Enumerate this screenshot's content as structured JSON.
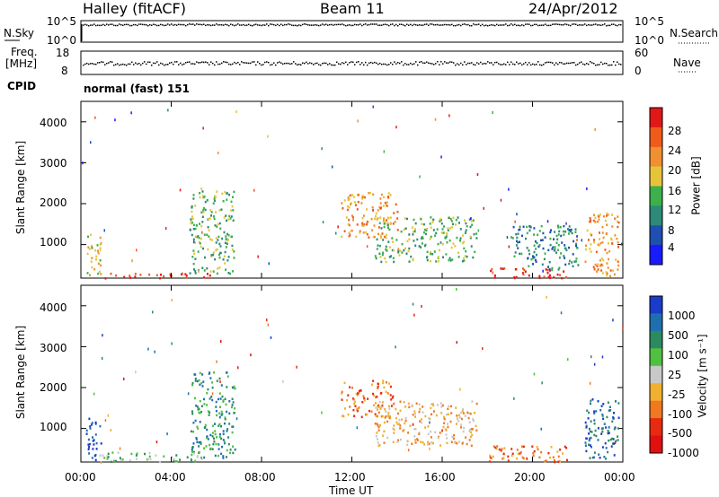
{
  "header": {
    "site": "Halley (fitACF)",
    "beam": "Beam 11",
    "date": "24/Apr/2012"
  },
  "left_labels": {
    "nsky": "N.Sky",
    "freq": "Freq.",
    "freq_unit": "[MHz]",
    "cpid": "CPID"
  },
  "right_labels": {
    "nsearch": "N.Search",
    "nave": "Nave"
  },
  "cpid_text": "normal (fast) 151",
  "chart_data": [
    {
      "type": "line",
      "panel": "noise",
      "yaxis_left_ticks": [
        "10^5",
        "10^0"
      ],
      "yaxis_right_ticks": [
        "10^5",
        "10^0"
      ],
      "series": [
        {
          "name": "N.Sky",
          "level": 5
        }
      ]
    },
    {
      "type": "line",
      "panel": "frequency",
      "yaxis_left_ticks": [
        "18",
        "8"
      ],
      "yaxis_right_ticks": [
        "60",
        "0"
      ],
      "series": [
        {
          "name": "Freq.",
          "value_mhz": 10.5
        }
      ]
    },
    {
      "type": "heatmap",
      "panel": "power",
      "ylabel": "Slant Range [km]",
      "ylim": [
        180,
        4500
      ],
      "yticks": [
        "1000",
        "2000",
        "3000",
        "4000"
      ],
      "xlim_hours": [
        0,
        24
      ],
      "colorbar": {
        "label": "Power [dB]",
        "ticks": [
          "4",
          "8",
          "12",
          "16",
          "20",
          "24",
          "28"
        ],
        "colors": [
          "#1a1aff",
          "#1f4fb0",
          "#2d8a78",
          "#3cb04a",
          "#e6c43a",
          "#f09030",
          "#f05a1a",
          "#e01818"
        ]
      },
      "patches": [
        {
          "t0": 0.2,
          "t1": 0.9,
          "r0": 250,
          "r1": 1300,
          "level": 4
        },
        {
          "t0": 1.0,
          "t1": 6.0,
          "r0": 200,
          "r1": 330,
          "level": 7
        },
        {
          "t0": 4.8,
          "t1": 6.8,
          "r0": 300,
          "r1": 2400,
          "level": 3
        },
        {
          "t0": 11.5,
          "t1": 14.0,
          "r0": 1200,
          "r1": 2300,
          "level": 5
        },
        {
          "t0": 13.0,
          "t1": 17.5,
          "r0": 600,
          "r1": 1700,
          "level": 3
        },
        {
          "t0": 18.0,
          "t1": 21.5,
          "r0": 200,
          "r1": 450,
          "level": 7
        },
        {
          "t0": 19.0,
          "t1": 22.0,
          "r0": 400,
          "r1": 1500,
          "level": 2
        },
        {
          "t0": 22.3,
          "t1": 23.8,
          "r0": 250,
          "r1": 1800,
          "level": 5
        }
      ]
    },
    {
      "type": "heatmap",
      "panel": "velocity",
      "ylabel": "Slant Range [km]",
      "xlabel": "Time UT",
      "ylim": [
        180,
        4500
      ],
      "yticks": [
        "1000",
        "2000",
        "3000",
        "4000"
      ],
      "xticks": [
        "00:00",
        "04:00",
        "08:00",
        "12:00",
        "16:00",
        "20:00",
        "00:00"
      ],
      "xlim_hours": [
        0,
        24
      ],
      "colorbar": {
        "label": "Velocity [m s⁻¹]",
        "ticks": [
          "1000",
          "500",
          "100",
          "25",
          "-25",
          "-100",
          "-500",
          "-1000"
        ],
        "colors": [
          "#1a3cc8",
          "#1f6fb0",
          "#2d8a60",
          "#50c040",
          "#c8c8c8",
          "#f0b030",
          "#f07820",
          "#e82a10",
          "#e01010"
        ]
      },
      "patches": [
        {
          "t0": 0.2,
          "t1": 0.9,
          "r0": 250,
          "r1": 1300,
          "level": 0
        },
        {
          "t0": 0.8,
          "t1": 5.5,
          "r0": 200,
          "r1": 450,
          "level": 3
        },
        {
          "t0": 4.8,
          "t1": 6.8,
          "r0": 300,
          "r1": 2400,
          "level": 2
        },
        {
          "t0": 11.5,
          "t1": 13.8,
          "r0": 1300,
          "r1": 2200,
          "level": 6
        },
        {
          "t0": 13.0,
          "t1": 17.5,
          "r0": 600,
          "r1": 1700,
          "level": 5
        },
        {
          "t0": 18.0,
          "t1": 21.5,
          "r0": 200,
          "r1": 600,
          "level": 6
        },
        {
          "t0": 22.3,
          "t1": 23.8,
          "r0": 250,
          "r1": 1800,
          "level": 1
        }
      ]
    }
  ]
}
